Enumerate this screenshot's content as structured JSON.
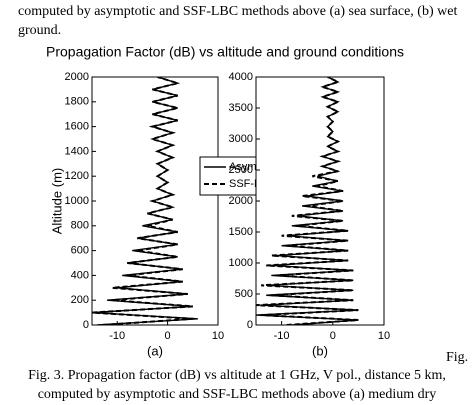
{
  "header": {
    "lines": [
      "computed by asymptotic and SSF-LBC methods above (a) sea surface, (b) wet",
      "ground."
    ]
  },
  "figure": {
    "title": "Propagation Factor (dB) vs altitude and ground conditions",
    "y_label": "Altitude (m)",
    "side_note": "Fig."
  },
  "chart_data": [
    {
      "type": "line",
      "label": "(a)",
      "xlim": [
        -15,
        10
      ],
      "xticks": [
        -10,
        0,
        10
      ],
      "ylim": [
        0,
        2000
      ],
      "yticks": [
        0,
        200,
        400,
        600,
        800,
        1000,
        1200,
        1400,
        1600,
        1800,
        2000
      ],
      "legend": "upper-right",
      "y": [
        0,
        50,
        100,
        150,
        200,
        250,
        300,
        350,
        400,
        450,
        500,
        550,
        600,
        650,
        700,
        750,
        800,
        850,
        900,
        950,
        1000,
        1050,
        1100,
        1150,
        1200,
        1250,
        1300,
        1350,
        1400,
        1450,
        1500,
        1550,
        1600,
        1650,
        1700,
        1750,
        1800,
        1850,
        1900,
        1950,
        2000
      ],
      "series": [
        {
          "name": "Asymptotic",
          "color": "#000000",
          "dash": "solid",
          "values": [
            -14,
            6,
            -15,
            5,
            -12,
            4,
            -10,
            3,
            -9,
            3,
            -8,
            2,
            -7,
            2,
            -6,
            2,
            -5,
            1,
            -4,
            1,
            -3,
            1,
            -2,
            0,
            -2,
            0,
            -2,
            1,
            -2,
            1,
            -3,
            1,
            -3,
            2,
            -3,
            2,
            -3,
            2,
            -3,
            2,
            -2
          ]
        },
        {
          "name": "SSF-LBC",
          "color": "#000000",
          "dash": "dashed",
          "values": [
            -13,
            5,
            -15,
            5,
            -11,
            4,
            -11,
            3,
            -8,
            3,
            -8,
            2,
            -6,
            2,
            -6,
            2,
            -4,
            1,
            -4,
            1,
            -3,
            1,
            -2,
            0,
            -2,
            0,
            -2,
            1,
            -2,
            1,
            -3,
            1,
            -3,
            2,
            -3,
            2,
            -3,
            2,
            -3,
            2,
            -2
          ]
        }
      ]
    },
    {
      "type": "line",
      "label": "(b)",
      "xlim": [
        -15,
        10
      ],
      "xticks": [
        -10,
        0,
        10
      ],
      "ylim": [
        0,
        4000
      ],
      "yticks": [
        0,
        500,
        1000,
        1500,
        2000,
        2500,
        3000,
        3500,
        4000
      ],
      "y": [
        0,
        80,
        160,
        240,
        320,
        400,
        480,
        560,
        640,
        720,
        800,
        880,
        960,
        1040,
        1120,
        1200,
        1280,
        1360,
        1440,
        1520,
        1600,
        1680,
        1760,
        1840,
        1920,
        2000,
        2080,
        2160,
        2240,
        2320,
        2400,
        2480,
        2560,
        2640,
        2720,
        2800,
        2880,
        2960,
        3040,
        3120,
        3200,
        3280,
        3360,
        3440,
        3520,
        3600,
        3680,
        3760,
        3840,
        3920,
        4000
      ],
      "series": [
        {
          "color": "#000000",
          "dash": "solid",
          "values": [
            -8,
            5,
            -15,
            5,
            -14,
            4,
            -13,
            4,
            -13,
            4,
            -12,
            4,
            -12,
            3,
            -11,
            3,
            -10,
            3,
            -9,
            3,
            -8,
            2,
            -7,
            2,
            -6,
            2,
            -5,
            2,
            -4,
            1,
            -3,
            1,
            -2,
            1,
            -2,
            1,
            -1,
            1,
            -1,
            0,
            -1,
            0,
            -1,
            1,
            -1,
            1,
            -2,
            1,
            -2,
            1,
            -1
          ]
        },
        {
          "color": "#000000",
          "dash": "dashed",
          "values": [
            -9,
            5,
            -14,
            5,
            -15,
            4,
            -12,
            4,
            -14,
            4,
            -11,
            4,
            -13,
            3,
            -12,
            3,
            -9,
            3,
            -10,
            3,
            -7,
            2,
            -8,
            2,
            -5,
            2,
            -6,
            2,
            -3,
            1,
            -4,
            1,
            -2,
            1,
            -2,
            1,
            -1,
            1,
            -1,
            0,
            -1,
            0,
            -1,
            1,
            -1,
            1,
            -2,
            1,
            -2,
            1,
            -1
          ]
        }
      ]
    }
  ],
  "caption": {
    "lines": [
      "Fig. 3.  Propagation factor (dB) vs altitude at 1 GHz, V pol., distance 5 km,",
      "computed by asymptotic and SSF-LBC methods above (a) medium dry"
    ]
  }
}
